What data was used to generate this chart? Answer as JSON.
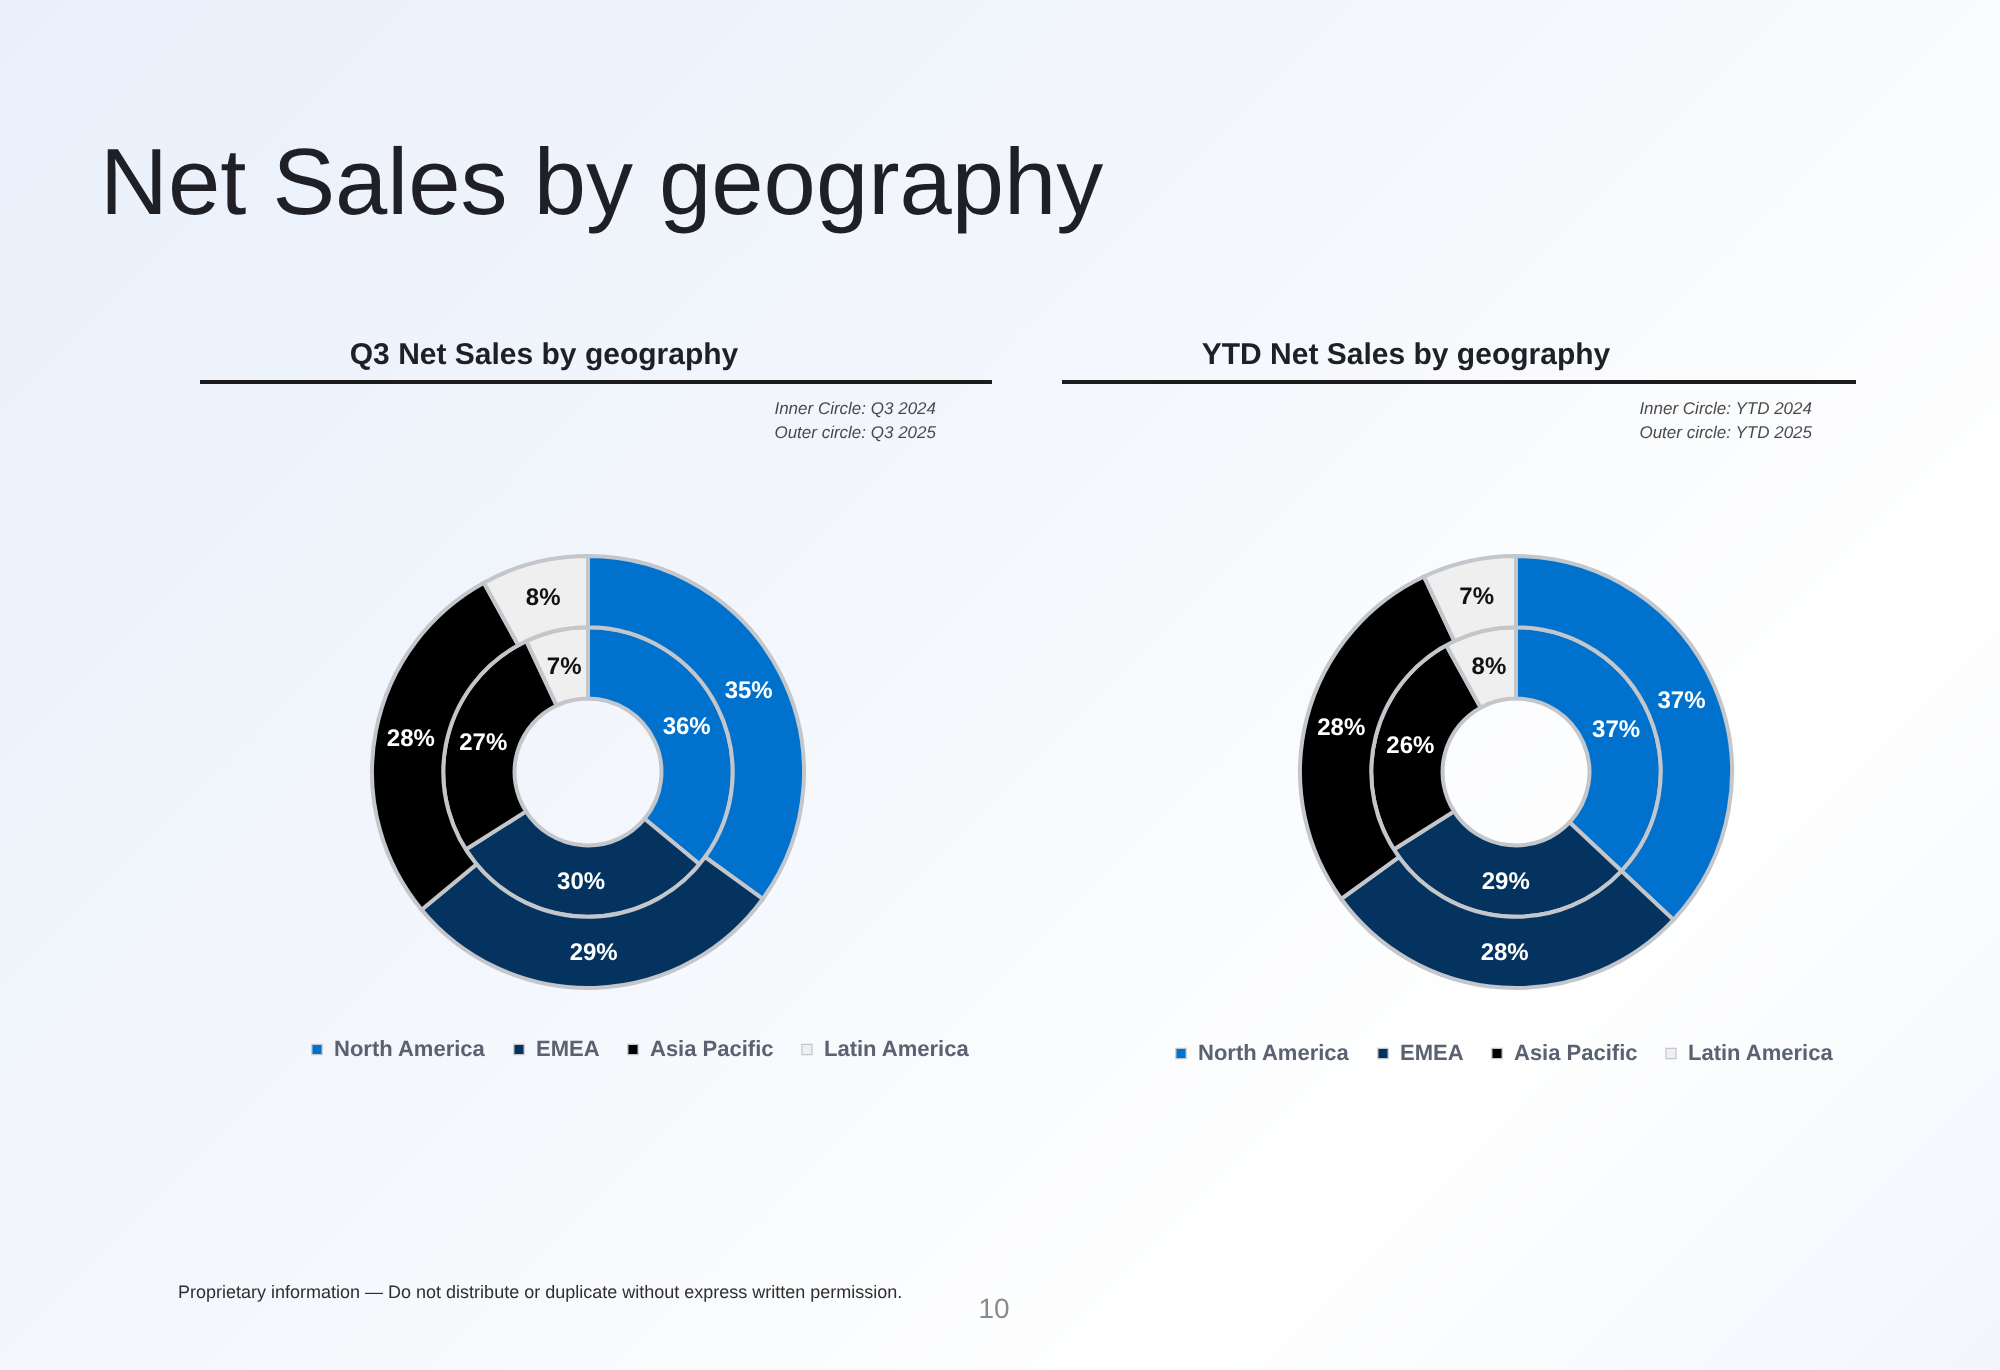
{
  "chart_data": [
    {
      "type": "other",
      "title": "Net Sales by geography"
    },
    {
      "type": "donut",
      "title": "Q3 Net Sales by geography",
      "annotations": [
        "Inner Circle: Q3 2024",
        "Outer circle: Q3 2025"
      ],
      "categories": [
        "North America",
        "EMEA",
        "Asia Pacific",
        "Latin America"
      ],
      "colors": [
        "#0072ce",
        "#03335e",
        "#000000",
        "#efefef"
      ],
      "series": [
        {
          "values": [
            36,
            30,
            27,
            7
          ],
          "value_labels": [
            "36%",
            "30%",
            "27%",
            "7%"
          ]
        },
        {
          "values": [
            35,
            29,
            28,
            8
          ],
          "value_labels": [
            "35%",
            "29%",
            "28%",
            "8%"
          ]
        }
      ],
      "legend": "bottom"
    },
    {
      "type": "donut",
      "title": "YTD Net Sales by geography",
      "annotations": [
        "Inner Circle: YTD 2024",
        "Outer circle: YTD 2025"
      ],
      "categories": [
        "North America",
        "EMEA",
        "Asia Pacific",
        "Latin America"
      ],
      "colors": [
        "#0072ce",
        "#03335e",
        "#000000",
        "#efefef"
      ],
      "series": [
        {
          "values": [
            37,
            29,
            26,
            8
          ],
          "value_labels": [
            "37%",
            "29%",
            "26%",
            "8%"
          ]
        },
        {
          "values": [
            37,
            28,
            28,
            7
          ],
          "value_labels": [
            "37%",
            "28%",
            "28%",
            "7%"
          ]
        }
      ],
      "legend": "bottom"
    },
    {
      "type": "other",
      "annotations": [
        "Proprietary information — Do not distribute or duplicate without express written permission.",
        "10"
      ]
    }
  ]
}
